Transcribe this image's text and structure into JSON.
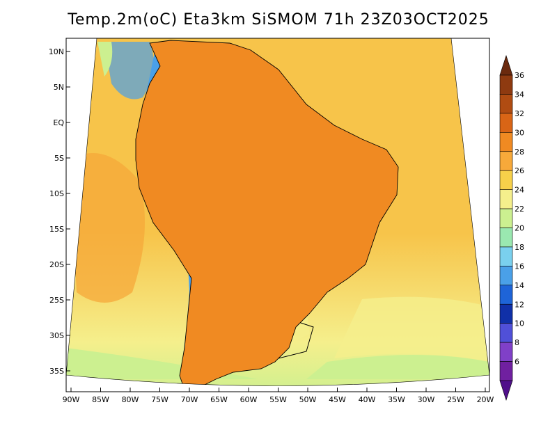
{
  "title": "Temp.2m(oC) Eta3km SiSMOM 71h 23Z03OCT2025",
  "lat_labels": [
    "10N",
    "5N",
    "EQ",
    "5S",
    "10S",
    "15S",
    "20S",
    "25S",
    "30S",
    "35S"
  ],
  "lon_labels": [
    "90W",
    "85W",
    "80W",
    "75W",
    "70W",
    "65W",
    "60W",
    "55W",
    "50W",
    "45W",
    "40W",
    "35W",
    "30W",
    "25W",
    "20W"
  ],
  "colorbar": {
    "labels": [
      "36",
      "34",
      "32",
      "30",
      "28",
      "26",
      "24",
      "22",
      "20",
      "18",
      "16",
      "14",
      "12",
      "10",
      "8",
      "6"
    ],
    "colors": [
      "#6b2a0e",
      "#8e3a10",
      "#b04c12",
      "#d96516",
      "#f08a22",
      "#f7a93a",
      "#f7d04a",
      "#f5ef8c",
      "#ccf090",
      "#9ae8b0",
      "#7ad0ee",
      "#4aa0e8",
      "#1e64d8",
      "#1030a8",
      "#5050d8",
      "#8040c8",
      "#7020a0",
      "#50108a"
    ],
    "extend": "both"
  },
  "palette": {
    "ocean_main": "#f7c44a",
    "ocean_warm": "#f5a83a",
    "ocean_cool": "#f5ef8c",
    "ocean_south": "#ccf090",
    "land_hot": "#e56a1c",
    "land_warm": "#f08a22",
    "andes_cold": "#5a2aa0",
    "andes_mid": "#4aa0e8",
    "border": "#000000"
  }
}
